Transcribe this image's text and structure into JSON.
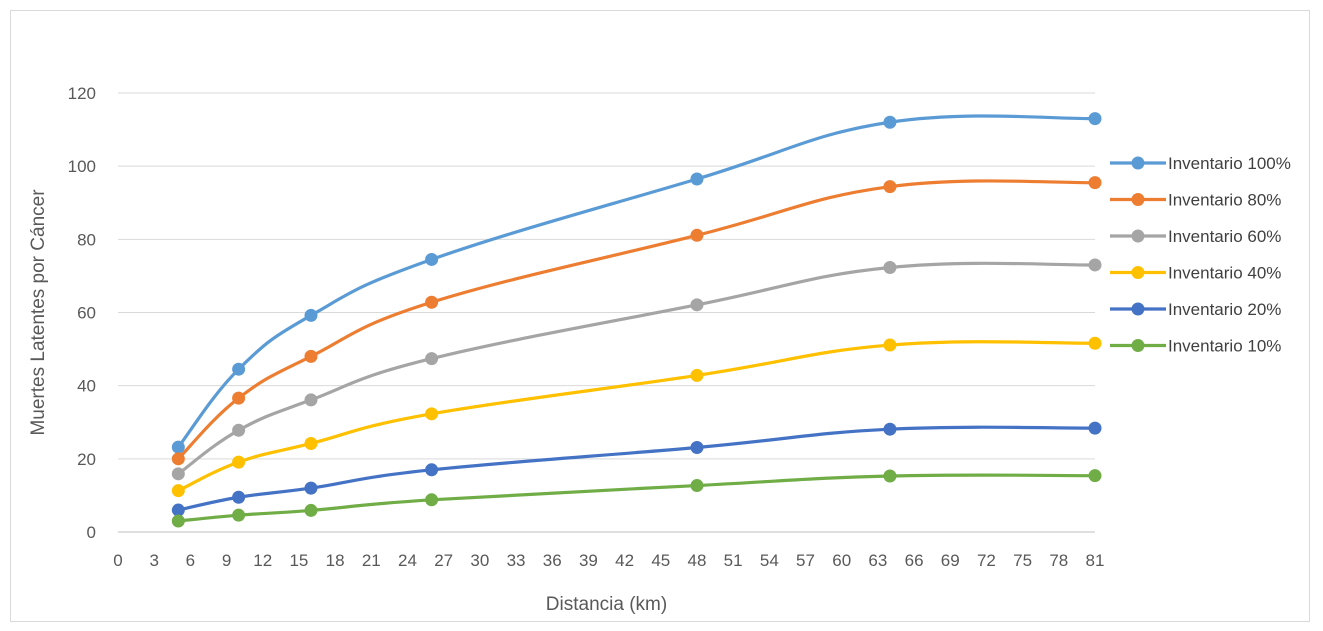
{
  "chart_data": {
    "type": "line",
    "title": "",
    "xlabel": "Distancia (km)",
    "ylabel": "Muertes Latentes por Cáncer",
    "xlim": [
      0,
      81
    ],
    "ylim": [
      0,
      120
    ],
    "xticks": [
      0,
      3,
      6,
      9,
      12,
      15,
      18,
      21,
      24,
      27,
      30,
      33,
      36,
      39,
      42,
      45,
      48,
      51,
      54,
      57,
      60,
      63,
      66,
      69,
      72,
      75,
      78,
      81
    ],
    "yticks": [
      0,
      20,
      40,
      60,
      80,
      100,
      120
    ],
    "grid": "horizontal",
    "legend_position": "right",
    "x": [
      5,
      10,
      16,
      26,
      48,
      64,
      81
    ],
    "series": [
      {
        "name": "Inventario 100%",
        "color": "#5B9BD5",
        "values": [
          23.2,
          44.5,
          59.2,
          74.5,
          96.5,
          112.0,
          113.0
        ]
      },
      {
        "name": "Inventario 80%",
        "color": "#ED7D31",
        "values": [
          20.0,
          36.6,
          48.0,
          62.8,
          81.1,
          94.4,
          95.5
        ]
      },
      {
        "name": "Inventario 60%",
        "color": "#A5A5A5",
        "values": [
          15.9,
          27.8,
          36.1,
          47.4,
          62.1,
          72.3,
          73.0
        ]
      },
      {
        "name": "Inventario 40%",
        "color": "#FFC000",
        "values": [
          11.3,
          19.1,
          24.2,
          32.3,
          42.8,
          51.1,
          51.6
        ]
      },
      {
        "name": "Inventario 20%",
        "color": "#4472C4",
        "values": [
          6.0,
          9.5,
          12.0,
          17.0,
          23.1,
          28.1,
          28.4
        ]
      },
      {
        "name": "Inventario 10%",
        "color": "#70AD47",
        "values": [
          3.0,
          4.6,
          5.9,
          8.8,
          12.7,
          15.3,
          15.4
        ]
      }
    ]
  }
}
